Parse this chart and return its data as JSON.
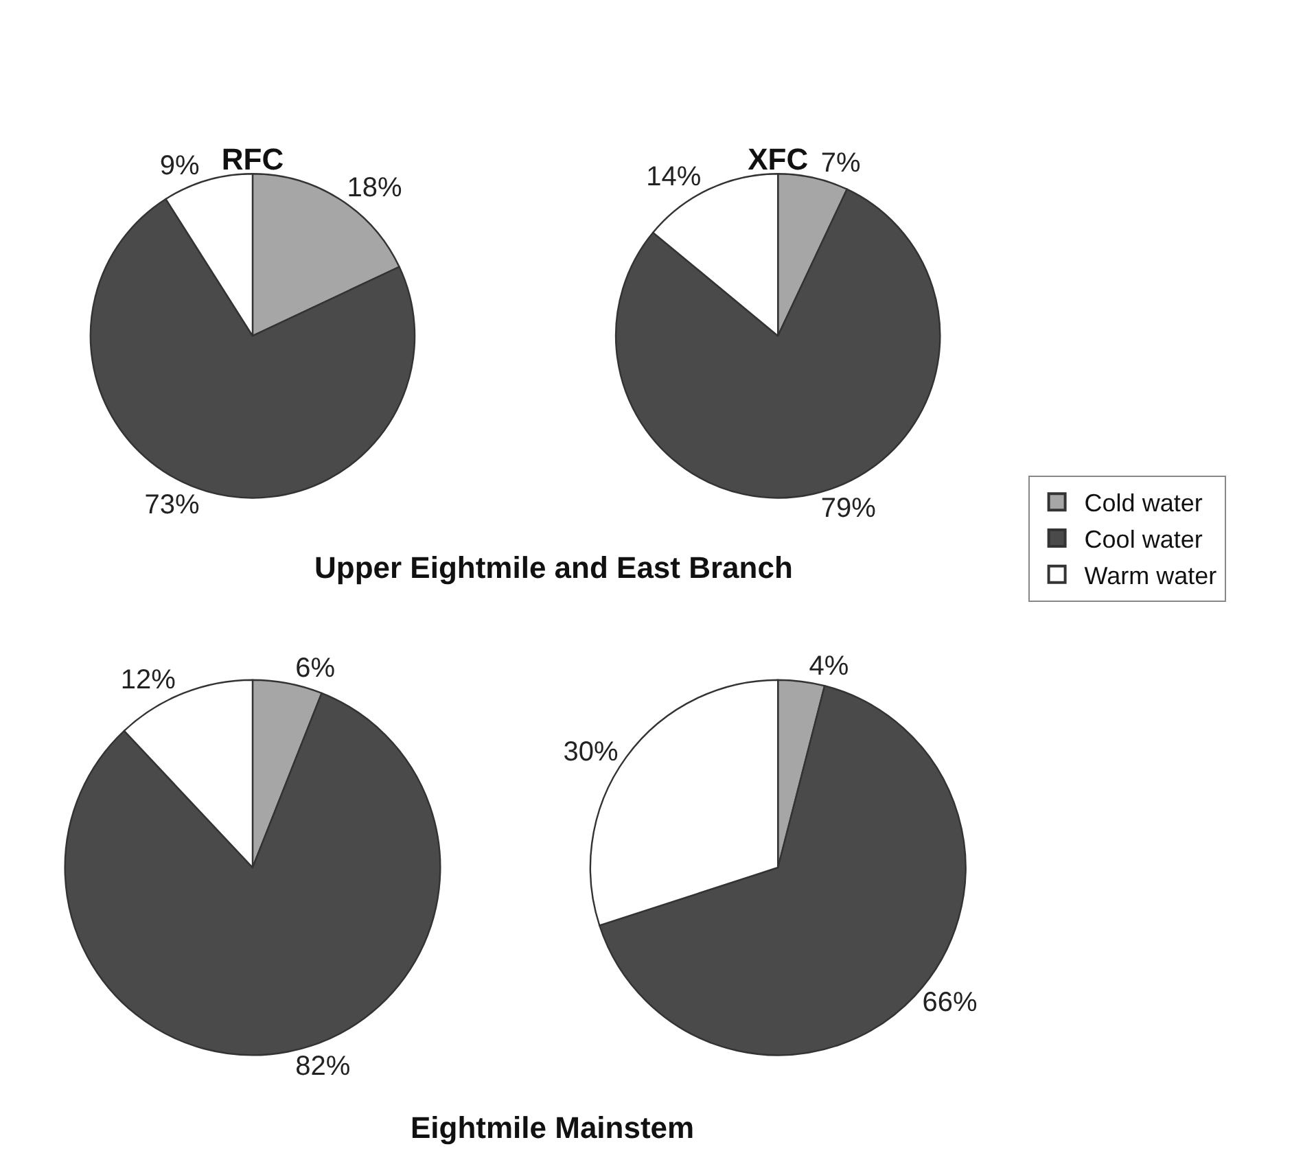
{
  "chart_data": [
    {
      "type": "pie",
      "title": "RFC",
      "categories": [
        "Cold water",
        "Cool water",
        "Warm water"
      ],
      "values": [
        18,
        73,
        9
      ],
      "value_labels": [
        "18%",
        "73%",
        "9%"
      ],
      "colors": [
        "#a6a6a6",
        "#4a4a4a",
        "#ffffff"
      ],
      "legend": "right",
      "annotations": [
        "Upper Eightmile and East Branch"
      ]
    },
    {
      "type": "pie",
      "title": "XFC",
      "categories": [
        null,
        null,
        null
      ],
      "values": [
        7,
        79,
        14
      ],
      "value_labels": [
        "7%",
        "79%",
        "14%"
      ],
      "colors": [
        "#a6a6a6",
        "#4a4a4a",
        "#ffffff"
      ]
    },
    {
      "type": "pie",
      "categories": [
        null,
        null,
        null
      ],
      "values": [
        6,
        82,
        12
      ],
      "value_labels": [
        "6%",
        "82%",
        "12%"
      ],
      "colors": [
        "#a6a6a6",
        "#4a4a4a",
        "#ffffff"
      ],
      "annotations": [
        "Eightmile Mainstem"
      ]
    },
    {
      "type": "pie",
      "categories": [
        null,
        null,
        null
      ],
      "values": [
        4,
        66,
        30
      ],
      "value_labels": [
        "4%",
        "66%",
        "30%"
      ],
      "colors": [
        "#a6a6a6",
        "#4a4a4a",
        "#ffffff"
      ]
    }
  ]
}
